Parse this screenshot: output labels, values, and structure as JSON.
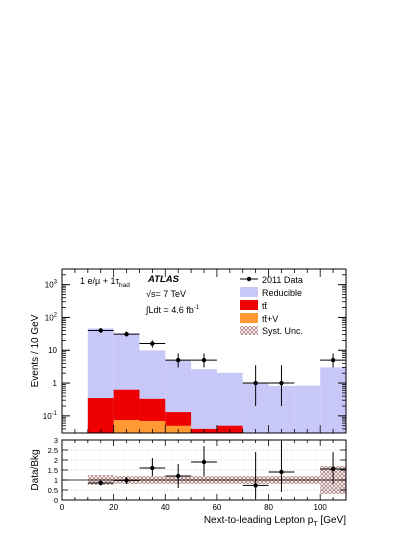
{
  "labels": {
    "channel_main": "1 e/μ + 1τ",
    "channel_sub": "had",
    "experiment": "ATLAS",
    "energy": "√s= 7 TeV",
    "lumi_prefix": "∫Ldt = 4.6 fb",
    "lumi_exp": "-1"
  },
  "chart_data": [
    {
      "type": "bar",
      "stacked": true,
      "log_y": true,
      "ylabel": "Events / 10 GeV",
      "xlim": [
        0,
        110
      ],
      "ylim": [
        0.03,
        3000
      ],
      "bin_edges": [
        10,
        20,
        30,
        40,
        50,
        60,
        70,
        80,
        90,
        100,
        110
      ],
      "x_ticks": [
        "0",
        "20",
        "40",
        "60",
        "80",
        "100"
      ],
      "y_ticks": [
        {
          "base": "10",
          "exp": "-1",
          "value": 0.1
        },
        {
          "base": "1",
          "exp": "",
          "value": 1
        },
        {
          "base": "10",
          "exp": "",
          "value": 10
        },
        {
          "base": "10",
          "exp": "2",
          "value": 100
        },
        {
          "base": "10",
          "exp": "3",
          "value": 1000
        }
      ],
      "legend_position": "top-right",
      "series": [
        {
          "name": "tt̄+V",
          "color": "#ff9933",
          "values": [
            0.0,
            0.075,
            0.07,
            0.05,
            0.0,
            0.0,
            0.0,
            0.0,
            0.0,
            0.0
          ]
        },
        {
          "name": "tt̄",
          "color": "#ee0000",
          "values": [
            0.35,
            0.55,
            0.26,
            0.08,
            0.04,
            0.05,
            0.0,
            0.02,
            0.03,
            0.0
          ]
        },
        {
          "name": "Reducible",
          "color": "#c8c8f8",
          "values": [
            46,
            32,
            9.6,
            5.0,
            2.6,
            2.0,
            1.0,
            0.8,
            0.8,
            3.0
          ]
        }
      ],
      "data_series": {
        "name": "2011 Data",
        "x": [
          15,
          25,
          35,
          45,
          55,
          75,
          85,
          105
        ],
        "xerr": [
          5,
          5,
          5,
          5,
          5,
          5,
          5,
          5
        ],
        "y": [
          40,
          31,
          16,
          5,
          5,
          1,
          1,
          5
        ],
        "y_low": [
          34,
          26,
          12,
          3,
          3,
          0.2,
          0.2,
          3
        ],
        "y_high": [
          47,
          37,
          20,
          8,
          8,
          3.5,
          3.5,
          8
        ]
      },
      "syst_name": "Syst. Unc."
    },
    {
      "type": "scatter",
      "ylabel": "Data/Bkg",
      "xlabel": "Next-to-leading Lepton p",
      "xlabel_sub": "T",
      "xlabel_unit": " [GeV]",
      "xlim": [
        0,
        110
      ],
      "ylim": [
        0,
        3
      ],
      "y_ticks": [
        "0",
        "0.5",
        "1",
        "1.5",
        "2",
        "2.5",
        "3"
      ],
      "points": {
        "x": [
          15,
          25,
          35,
          45,
          55,
          75,
          85,
          105
        ],
        "xerr": [
          5,
          5,
          5,
          5,
          5,
          5,
          5,
          5
        ],
        "y": [
          0.85,
          0.98,
          1.6,
          1.2,
          1.9,
          0.73,
          1.4,
          1.55
        ],
        "y_low": [
          0.72,
          0.8,
          1.2,
          0.6,
          1.2,
          0.1,
          0.4,
          0.8
        ],
        "y_high": [
          1.0,
          1.15,
          2.1,
          1.8,
          2.7,
          2.4,
          3.0,
          2.4
        ]
      },
      "syst_band": {
        "low": [
          0.75,
          0.8,
          0.8,
          0.8,
          0.8,
          0.8,
          0.8,
          0.8,
          0.8,
          0.3
        ],
        "high": [
          1.25,
          1.2,
          1.2,
          1.2,
          1.2,
          1.2,
          1.2,
          1.2,
          1.2,
          1.7
        ]
      }
    }
  ],
  "colors": {
    "data": "#000000",
    "syst_hatch": "#b08080"
  }
}
